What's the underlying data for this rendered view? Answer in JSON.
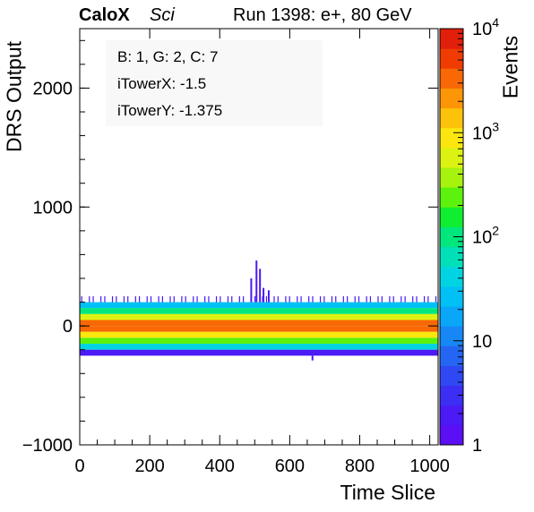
{
  "header": {
    "brand": "CaloX",
    "brand_sub": "Sci",
    "run_label": "Run 1398: e+, 80 GeV"
  },
  "info_box": {
    "line1": "B: 1, G: 2, C: 7",
    "line2": "iTowerX: -1.5",
    "line3": "iTowerY: -1.375"
  },
  "chart_data": {
    "type": "heatmap",
    "xlabel": "Time Slice",
    "ylabel": "DRS Output",
    "zlabel": "Events",
    "xlim": [
      0,
      1024
    ],
    "ylim": [
      -1000,
      2500
    ],
    "zlim": [
      1,
      10000
    ],
    "zscale": "log",
    "x_ticks": [
      0,
      200,
      400,
      600,
      800,
      1000
    ],
    "x_tick_labels": [
      "0",
      "200",
      "400",
      "600",
      "800",
      "1000"
    ],
    "y_ticks": [
      -1000,
      0,
      1000,
      2000
    ],
    "y_tick_labels": [
      "−1000",
      "0",
      "1000",
      "2000"
    ],
    "z_tick_labels": [
      {
        "value": 1,
        "base": "1",
        "exp": ""
      },
      {
        "value": 10,
        "base": "10",
        "exp": ""
      },
      {
        "value": 100,
        "base": "10",
        "exp": "2"
      },
      {
        "value": 1000,
        "base": "10",
        "exp": "3"
      },
      {
        "value": 10000,
        "base": "10",
        "exp": "4"
      }
    ],
    "palette": [
      "#5b0ff5",
      "#4b1af4",
      "#3c2ef3",
      "#2f48f3",
      "#2466f3",
      "#1787f5",
      "#0aa6f8",
      "#00c0f5",
      "#00d4e2",
      "#00e0b8",
      "#00e77e",
      "#10ee32",
      "#5cf20e",
      "#a6f30e",
      "#dcf212",
      "#fbe70f",
      "#fdc20a",
      "#fc9607",
      "#f86804",
      "#f03c02",
      "#e11f0b"
    ],
    "bands": [
      {
        "y0": 150,
        "y1": 200,
        "level": 0.33
      },
      {
        "y0": 100,
        "y1": 150,
        "level": 0.52
      },
      {
        "y0": 50,
        "y1": 100,
        "level": 0.7
      },
      {
        "y0": 0,
        "y1": 50,
        "level": 0.92
      },
      {
        "y0": -50,
        "y1": 0,
        "level": 0.88
      },
      {
        "y0": -100,
        "y1": -50,
        "level": 0.75
      },
      {
        "y0": -150,
        "y1": -100,
        "level": 0.58
      },
      {
        "y0": -200,
        "y1": -150,
        "level": 0.4
      },
      {
        "y0": -250,
        "y1": -200,
        "level": 0.04
      }
    ],
    "sparse_cells": [
      {
        "x": 490,
        "y0": 200,
        "y1": 400,
        "level": 0.05
      },
      {
        "x": 505,
        "y0": 200,
        "y1": 550,
        "level": 0.05
      },
      {
        "x": 515,
        "y0": 200,
        "y1": 480,
        "level": 0.05
      },
      {
        "x": 525,
        "y0": 200,
        "y1": 320,
        "level": 0.05
      },
      {
        "x": 540,
        "y0": 200,
        "y1": 300,
        "level": 0.05
      },
      {
        "x": 665,
        "y0": -250,
        "y1": -290,
        "level": 0.05
      }
    ]
  }
}
